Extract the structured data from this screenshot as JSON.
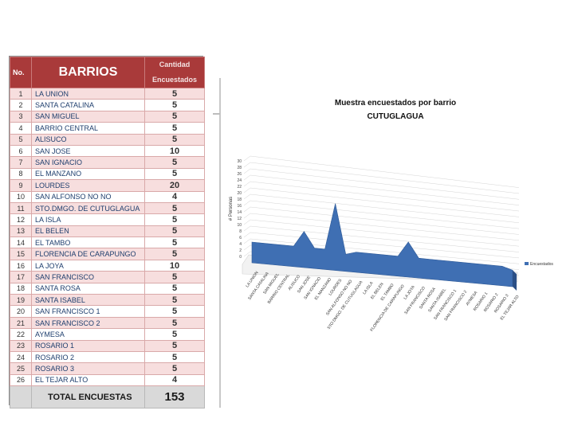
{
  "table": {
    "col_no": "No.",
    "col_barrios": "BARRIOS",
    "col_cantidad": "Cantidad Encuestados",
    "rows": [
      {
        "no": "1",
        "name": "LA UNION",
        "value": "5"
      },
      {
        "no": "2",
        "name": "SANTA CATALINA",
        "value": "5"
      },
      {
        "no": "3",
        "name": "SAN MIGUEL",
        "value": "5"
      },
      {
        "no": "4",
        "name": "BARRIO CENTRAL",
        "value": "5"
      },
      {
        "no": "5",
        "name": "ALISUCO",
        "value": "5"
      },
      {
        "no": "6",
        "name": "SAN JOSE",
        "value": "10"
      },
      {
        "no": "7",
        "name": "SAN IGNACIO",
        "value": "5"
      },
      {
        "no": "8",
        "name": "EL MANZANO",
        "value": "5"
      },
      {
        "no": "9",
        "name": "LOURDES",
        "value": "20"
      },
      {
        "no": "10",
        "name": "SAN ALFONSO NO NO",
        "value": "4"
      },
      {
        "no": "11",
        "name": "STO.DMGO. DE CUTUGLAGUA",
        "value": "5"
      },
      {
        "no": "12",
        "name": "LA ISLA",
        "value": "5"
      },
      {
        "no": "13",
        "name": "EL BELEN",
        "value": "5"
      },
      {
        "no": "14",
        "name": "EL TAMBO",
        "value": "5"
      },
      {
        "no": "15",
        "name": "FLORENCIA DE CARAPUNGO",
        "value": "5"
      },
      {
        "no": "16",
        "name": "LA JOYA",
        "value": "10"
      },
      {
        "no": "17",
        "name": "SAN FRANCISCO",
        "value": "5"
      },
      {
        "no": "18",
        "name": "SANTA ROSA",
        "value": "5"
      },
      {
        "no": "19",
        "name": "SANTA ISABEL",
        "value": "5"
      },
      {
        "no": "20",
        "name": "SAN FRANCISCO 1",
        "value": "5"
      },
      {
        "no": "21",
        "name": "SAN FRANCISCO 2",
        "value": "5"
      },
      {
        "no": "22",
        "name": "AYMESA",
        "value": "5"
      },
      {
        "no": "23",
        "name": "ROSARIO 1",
        "value": "5"
      },
      {
        "no": "24",
        "name": "ROSARIO 2",
        "value": "5"
      },
      {
        "no": "25",
        "name": "ROSARIO 3",
        "value": "5"
      },
      {
        "no": "26",
        "name": "EL TEJAR ALTO",
        "value": "4"
      }
    ],
    "total_label": "TOTAL ENCUESTAS",
    "total_value": "153"
  },
  "colors": {
    "header_bg": "#a93a3a",
    "row_alt": "#f7dede",
    "area_fill": "#3f6fb3",
    "area_side": "#2b4f86"
  },
  "chart_data": {
    "type": "area",
    "title_line1": "Muestra encuestados por barrio",
    "title_line2": "CUTUGLAGUA",
    "ylabel": "# Personas",
    "xlabel": "",
    "ylim": [
      0,
      30
    ],
    "yticks": [
      0,
      2,
      4,
      6,
      8,
      10,
      12,
      14,
      16,
      18,
      20,
      22,
      24,
      26,
      28,
      30
    ],
    "grid": true,
    "three_d": true,
    "legend_position": "right",
    "categories": [
      "LA UNION",
      "SANTA CATALINA",
      "SAN MIGUEL",
      "BARRIO CENTRAL",
      "ALISUCO",
      "SAN JOSE",
      "SAN IGNACIO",
      "EL MANZANO",
      "LOURDES",
      "SAN ALFONSO NO NO",
      "STO.DMGO. DE CUTUGLAGUA",
      "LA ISLA",
      "EL BELEN",
      "EL TAMBO",
      "FLORENCIA DE CARAPUNGO",
      "LA JOYA",
      "SAN FRANCISCO",
      "SANTA ROSA",
      "SANTA ISABEL",
      "SAN FRANCISCO 1",
      "SAN FRANCISCO 2",
      "AYMESA",
      "ROSARIO 1",
      "ROSARIO 2",
      "ROSARIO 3",
      "EL TEJAR ALTO"
    ],
    "series": [
      {
        "name": "Encuestados",
        "values": [
          5,
          5,
          5,
          5,
          5,
          10,
          5,
          5,
          20,
          4,
          5,
          5,
          5,
          5,
          5,
          10,
          5,
          5,
          5,
          5,
          5,
          5,
          5,
          5,
          5,
          4
        ]
      }
    ]
  }
}
